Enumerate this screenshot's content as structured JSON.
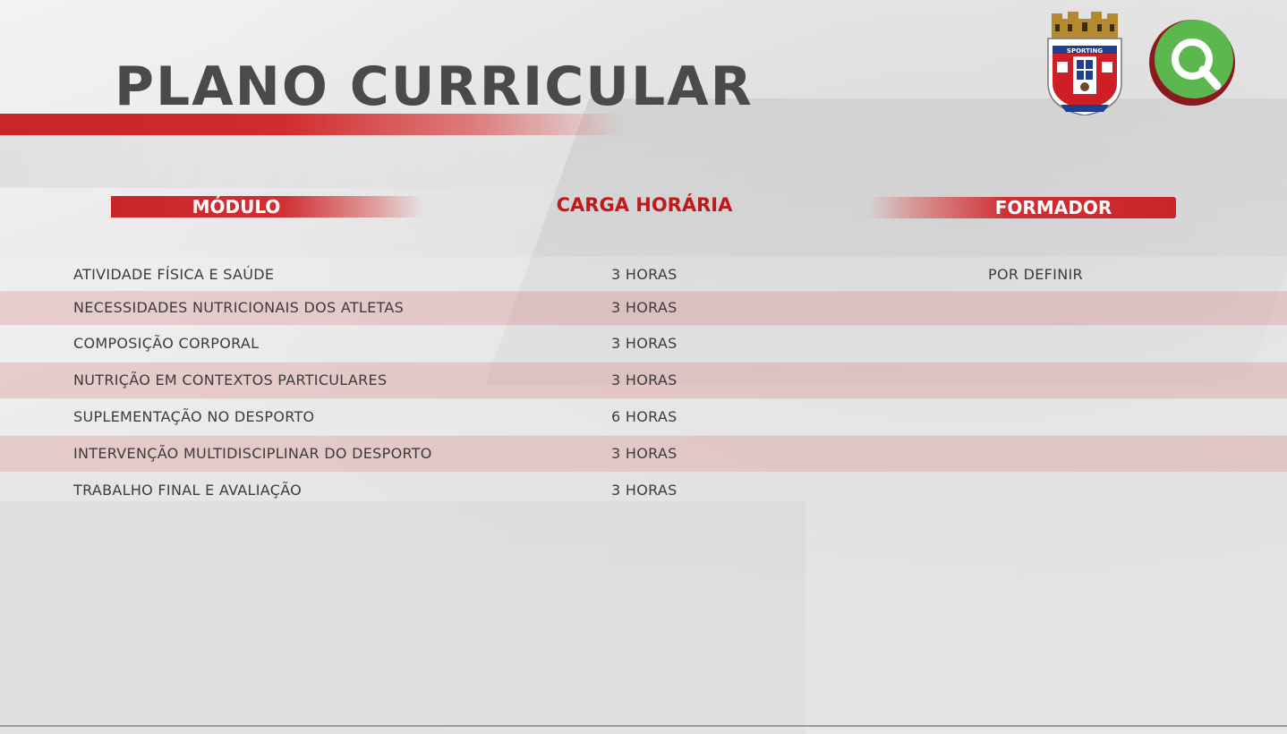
{
  "slide": {
    "title": "PLANO CURRICULAR"
  },
  "logos": {
    "club_crest_text": [
      "SPORTING",
      "CLUBE DE BRAGA"
    ],
    "q_logo_icon": "q-letter-logo"
  },
  "table": {
    "headers": {
      "module": "MÓDULO",
      "hours": "CARGA HORÁRIA",
      "trainer": "FORMADOR"
    },
    "rows": [
      {
        "module": "ATIVIDADE FÍSICA E SAÚDE",
        "hours": "3 HORAS",
        "trainer": "POR DEFINIR"
      },
      {
        "module": "NECESSIDADES NUTRICIONAIS DOS ATLETAS",
        "hours": "3 HORAS",
        "trainer": ""
      },
      {
        "module": "COMPOSIÇÃO CORPORAL",
        "hours": "3 HORAS",
        "trainer": ""
      },
      {
        "module": "NUTRIÇÃO EM CONTEXTOS PARTICULARES",
        "hours": "3 HORAS",
        "trainer": ""
      },
      {
        "module": "SUPLEMENTAÇÃO NO DESPORTO",
        "hours": "6 HORAS",
        "trainer": ""
      },
      {
        "module": "INTERVENÇÃO MULTIDISCIPLINAR DO DESPORTO",
        "hours": "3 HORAS",
        "trainer": ""
      },
      {
        "module": "TRABALHO FINAL E AVALIAÇÃO",
        "hours": "3 HORAS",
        "trainer": ""
      }
    ]
  },
  "colors": {
    "accent_red": "#c92529",
    "title_gray": "#4a4a4a",
    "q_green": "#5cb84e",
    "q_dark_red": "#8a1a1e"
  }
}
